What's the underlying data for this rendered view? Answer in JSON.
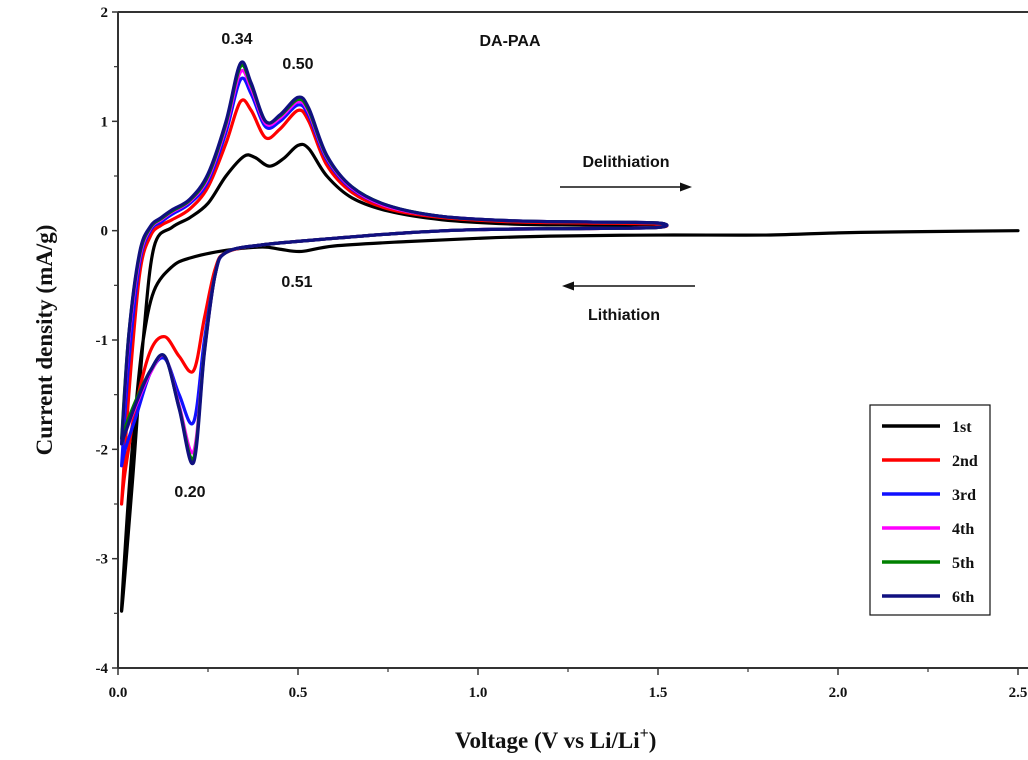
{
  "chart_data": {
    "type": "line",
    "title": "DA-PAA",
    "xlabel": "Voltage (V vs Li/Li",
    "xlabel_sup": "+",
    "xlabel_close": ")",
    "ylabel": "Current density (mA/g)",
    "xlim": [
      0,
      2.5
    ],
    "ylim": [
      -4,
      2
    ],
    "xticks": [
      "0.0",
      "0.5",
      "1.0",
      "1.5",
      "2.0",
      "2.5"
    ],
    "yticks": [
      "2",
      "1",
      "0",
      "-1",
      "-2",
      "-3",
      "-4"
    ],
    "grid": false,
    "legend_position": "bottom-right",
    "annotations": {
      "peak_034": "0.34",
      "peak_050": "0.50",
      "peak_051": "0.51",
      "peak_020": "0.20",
      "delithiation": "Delithiation",
      "lithiation": "Lithiation"
    },
    "series": [
      {
        "name": "1st",
        "color": "#000000",
        "x": [
          2.5,
          2.2,
          2.0,
          1.8,
          1.5,
          1.2,
          1.0,
          0.8,
          0.6,
          0.51,
          0.45,
          0.4,
          0.3,
          0.2,
          0.15,
          0.1,
          0.07,
          0.05,
          0.03,
          0.01,
          0.04,
          0.07,
          0.1,
          0.15,
          0.2,
          0.25,
          0.3,
          0.35,
          0.38,
          0.42,
          0.46,
          0.5,
          0.53,
          0.58,
          0.65,
          0.75,
          0.9,
          1.1,
          1.3,
          1.5
        ],
        "y": [
          0.0,
          -0.01,
          -0.02,
          -0.04,
          -0.04,
          -0.05,
          -0.07,
          -0.1,
          -0.14,
          -0.19,
          -0.17,
          -0.15,
          -0.18,
          -0.25,
          -0.33,
          -0.55,
          -1.0,
          -1.6,
          -2.4,
          -3.48,
          -2.3,
          -1.0,
          -0.15,
          0.03,
          0.12,
          0.25,
          0.5,
          0.68,
          0.67,
          0.59,
          0.66,
          0.78,
          0.75,
          0.5,
          0.3,
          0.18,
          0.1,
          0.06,
          0.05,
          0.04
        ]
      },
      {
        "name": "2nd",
        "color": "#ff0000",
        "x": [
          0.01,
          0.03,
          0.06,
          0.09,
          0.12,
          0.15,
          0.2,
          0.25,
          0.3,
          0.34,
          0.37,
          0.41,
          0.45,
          0.5,
          0.53,
          0.58,
          0.65,
          0.75,
          0.9,
          1.1,
          1.3,
          1.5,
          1.5,
          1.3,
          1.0,
          0.8,
          0.6,
          0.4,
          0.3,
          0.27,
          0.24,
          0.21,
          0.17,
          0.13,
          0.09,
          0.05,
          0.02,
          0.01
        ],
        "y": [
          -2.5,
          -1.5,
          -0.4,
          -0.05,
          0.05,
          0.1,
          0.2,
          0.4,
          0.8,
          1.18,
          1.1,
          0.85,
          0.93,
          1.1,
          1.0,
          0.6,
          0.35,
          0.2,
          0.12,
          0.08,
          0.07,
          0.06,
          0.03,
          0.02,
          0.01,
          -0.02,
          -0.07,
          -0.13,
          -0.2,
          -0.35,
          -0.8,
          -1.28,
          -1.15,
          -0.97,
          -1.1,
          -1.6,
          -2.2,
          -2.5
        ]
      },
      {
        "name": "3rd",
        "color": "#1010ff",
        "x": [
          0.01,
          0.03,
          0.06,
          0.09,
          0.12,
          0.15,
          0.2,
          0.25,
          0.3,
          0.34,
          0.37,
          0.41,
          0.45,
          0.5,
          0.53,
          0.58,
          0.65,
          0.75,
          0.9,
          1.1,
          1.3,
          1.5,
          1.5,
          1.3,
          1.0,
          0.8,
          0.6,
          0.4,
          0.3,
          0.27,
          0.24,
          0.21,
          0.17,
          0.13,
          0.09,
          0.05,
          0.02,
          0.01
        ],
        "y": [
          -2.15,
          -1.2,
          -0.3,
          0.0,
          0.08,
          0.15,
          0.25,
          0.45,
          0.9,
          1.38,
          1.25,
          0.95,
          1.0,
          1.15,
          1.05,
          0.65,
          0.38,
          0.22,
          0.13,
          0.09,
          0.08,
          0.07,
          0.03,
          0.02,
          0.01,
          -0.02,
          -0.07,
          -0.13,
          -0.2,
          -0.4,
          -1.0,
          -1.75,
          -1.5,
          -1.17,
          -1.3,
          -1.7,
          -2.0,
          -2.15
        ]
      },
      {
        "name": "4th",
        "color": "#ff00ff",
        "x": [
          0.01,
          0.03,
          0.06,
          0.09,
          0.12,
          0.15,
          0.2,
          0.25,
          0.3,
          0.34,
          0.37,
          0.41,
          0.45,
          0.5,
          0.53,
          0.58,
          0.65,
          0.75,
          0.9,
          1.1,
          1.3,
          1.5,
          1.5,
          1.3,
          1.0,
          0.8,
          0.6,
          0.4,
          0.3,
          0.27,
          0.24,
          0.21,
          0.17,
          0.13,
          0.09,
          0.05,
          0.02,
          0.01
        ],
        "y": [
          -1.95,
          -1.0,
          -0.25,
          0.02,
          0.1,
          0.17,
          0.27,
          0.48,
          0.95,
          1.45,
          1.3,
          0.98,
          1.03,
          1.18,
          1.08,
          0.67,
          0.39,
          0.22,
          0.13,
          0.09,
          0.08,
          0.07,
          0.03,
          0.02,
          0.01,
          -0.02,
          -0.07,
          -0.13,
          -0.2,
          -0.4,
          -1.1,
          -2.02,
          -1.6,
          -1.15,
          -1.3,
          -1.6,
          -1.85,
          -1.95
        ]
      },
      {
        "name": "5th",
        "color": "#008000",
        "x": [
          0.01,
          0.03,
          0.06,
          0.09,
          0.12,
          0.15,
          0.2,
          0.25,
          0.3,
          0.34,
          0.37,
          0.41,
          0.45,
          0.5,
          0.53,
          0.58,
          0.65,
          0.75,
          0.9,
          1.1,
          1.3,
          1.5,
          1.5,
          1.3,
          1.0,
          0.8,
          0.6,
          0.4,
          0.3,
          0.27,
          0.24,
          0.21,
          0.17,
          0.13,
          0.09,
          0.05,
          0.02,
          0.01
        ],
        "y": [
          -1.9,
          -0.95,
          -0.22,
          0.03,
          0.11,
          0.18,
          0.28,
          0.5,
          0.98,
          1.5,
          1.33,
          1.0,
          1.05,
          1.2,
          1.1,
          0.68,
          0.4,
          0.23,
          0.13,
          0.09,
          0.08,
          0.07,
          0.03,
          0.02,
          0.01,
          -0.02,
          -0.07,
          -0.13,
          -0.2,
          -0.4,
          -1.1,
          -2.08,
          -1.62,
          -1.15,
          -1.28,
          -1.55,
          -1.8,
          -1.9
        ]
      },
      {
        "name": "6th",
        "color": "#101080",
        "x": [
          0.01,
          0.03,
          0.06,
          0.09,
          0.12,
          0.15,
          0.2,
          0.25,
          0.3,
          0.34,
          0.37,
          0.41,
          0.45,
          0.5,
          0.53,
          0.58,
          0.65,
          0.75,
          0.9,
          1.1,
          1.3,
          1.5,
          1.5,
          1.3,
          1.0,
          0.8,
          0.6,
          0.4,
          0.3,
          0.27,
          0.24,
          0.21,
          0.17,
          0.13,
          0.09,
          0.05,
          0.02,
          0.01
        ],
        "y": [
          -1.95,
          -0.95,
          -0.2,
          0.04,
          0.12,
          0.19,
          0.29,
          0.52,
          1.0,
          1.53,
          1.35,
          1.0,
          1.06,
          1.22,
          1.12,
          0.69,
          0.4,
          0.23,
          0.13,
          0.09,
          0.08,
          0.07,
          0.03,
          0.02,
          0.01,
          -0.02,
          -0.07,
          -0.13,
          -0.2,
          -0.4,
          -1.12,
          -2.12,
          -1.63,
          -1.15,
          -1.28,
          -1.58,
          -1.85,
          -1.95
        ]
      }
    ]
  }
}
